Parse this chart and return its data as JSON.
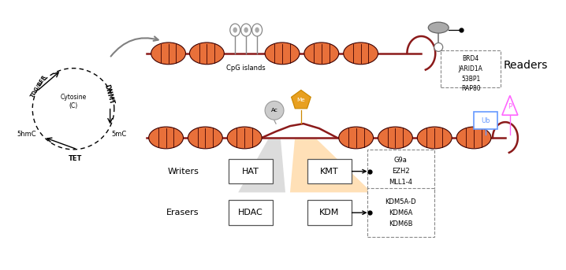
{
  "background": "#ffffff",
  "nucleosome_color": "#E8703A",
  "nucleosome_edge": "#3D0000",
  "dna_color": "#8B1A1A",
  "ac_color": "#cccccc",
  "me_color": "#E8A020",
  "me_edge": "#cc8800",
  "ub_color": "#6699ff",
  "p_color": "#ff66ff",
  "cpg_color": "#888888",
  "readers_list": [
    "BRD4",
    "JARID1A",
    "53BP1",
    "RAP80"
  ],
  "readers_label": "Readers",
  "writers_label": "Writers",
  "erasers_label": "Erasers",
  "hat_label": "HAT",
  "hdac_label": "HDAC",
  "kmt_label": "KMT",
  "kdm_label": "KDM",
  "kmt_targets": [
    "G9a",
    "EZH2",
    "MLL1-4"
  ],
  "kdm_targets": [
    "KDM5A-D",
    "KDM6A",
    "KDM6B"
  ],
  "cpg_label": "CpG islands",
  "ac_label": "Ac",
  "me_label": "Me",
  "ub_label": "Ub",
  "p_label": "P"
}
